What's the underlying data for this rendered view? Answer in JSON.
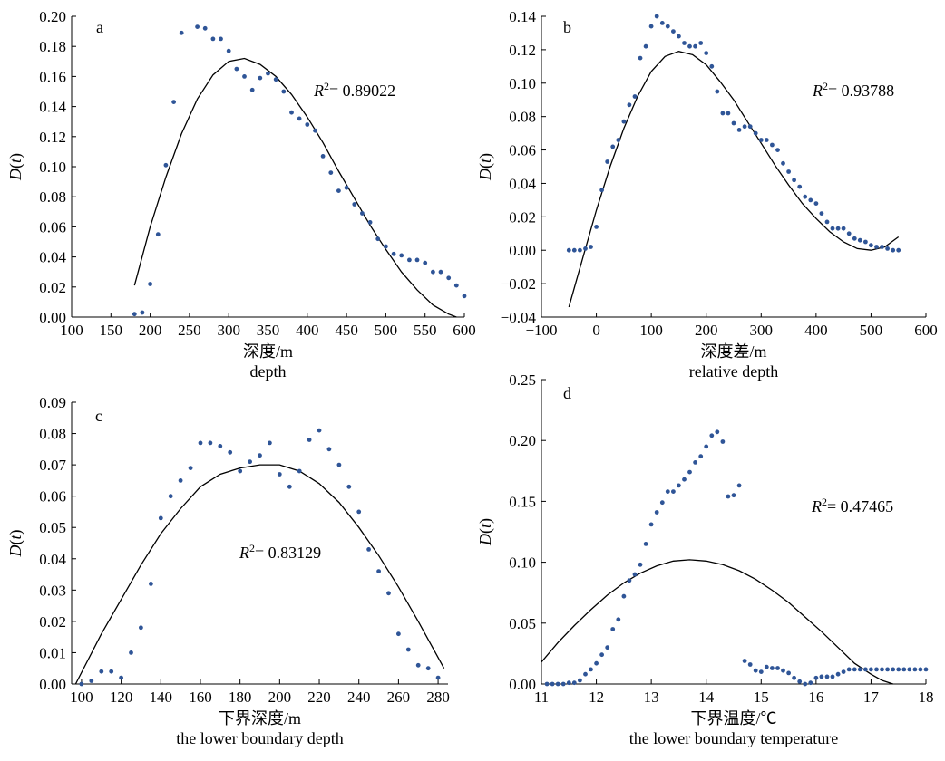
{
  "chart_data": [
    {
      "type": "scatter",
      "panel_label": "a",
      "xlabel_cn": "深度/m",
      "xlabel_en": "depth",
      "ylabel_main": "D",
      "ylabel_var": "t",
      "r2_prefix": "R",
      "r2_exp": "2",
      "r2_value": "= 0.89022",
      "xlim": [
        100,
        600
      ],
      "ylim": [
        0,
        0.2
      ],
      "xticks": [
        100,
        150,
        200,
        250,
        300,
        350,
        400,
        450,
        500,
        550,
        600
      ],
      "xtick_labels": [
        "100",
        "150",
        "200",
        "250",
        "300",
        "350",
        "400",
        "450",
        "500",
        "550",
        "600"
      ],
      "yticks": [
        0,
        0.02,
        0.04,
        0.06,
        0.08,
        0.1,
        0.12,
        0.14,
        0.16,
        0.18,
        0.2
      ],
      "ytick_labels": [
        "0.00",
        "0.02",
        "0.04",
        "0.06",
        "0.08",
        "0.10",
        "0.12",
        "0.14",
        "0.16",
        "0.18",
        "0.20"
      ],
      "points": {
        "x": [
          180,
          190,
          200,
          210,
          220,
          230,
          240,
          260,
          270,
          280,
          290,
          300,
          310,
          320,
          330,
          340,
          350,
          360,
          370,
          380,
          390,
          400,
          410,
          420,
          430,
          440,
          450,
          460,
          470,
          480,
          490,
          500,
          510,
          520,
          530,
          540,
          550,
          560,
          570,
          580,
          590,
          600
        ],
        "y": [
          0.002,
          0.003,
          0.022,
          0.055,
          0.101,
          0.143,
          0.189,
          0.193,
          0.192,
          0.185,
          0.185,
          0.177,
          0.165,
          0.16,
          0.151,
          0.159,
          0.162,
          0.158,
          0.15,
          0.136,
          0.132,
          0.128,
          0.124,
          0.107,
          0.096,
          0.084,
          0.086,
          0.075,
          0.069,
          0.063,
          0.052,
          0.047,
          0.042,
          0.041,
          0.038,
          0.038,
          0.036,
          0.03,
          0.03,
          0.026,
          0.021,
          0.014
        ]
      },
      "fit": {
        "x": [
          180,
          200,
          220,
          240,
          260,
          280,
          300,
          320,
          340,
          360,
          380,
          400,
          420,
          440,
          460,
          480,
          500,
          520,
          540,
          560,
          580,
          590
        ],
        "y": [
          0.021,
          0.06,
          0.093,
          0.122,
          0.145,
          0.161,
          0.17,
          0.172,
          0.168,
          0.16,
          0.148,
          0.133,
          0.116,
          0.097,
          0.079,
          0.061,
          0.045,
          0.03,
          0.018,
          0.008,
          0.002,
          0.0
        ]
      }
    },
    {
      "type": "scatter",
      "panel_label": "b",
      "xlabel_cn": "深度差/m",
      "xlabel_en": "relative depth",
      "ylabel_main": "D",
      "ylabel_var": "t",
      "r2_prefix": "R",
      "r2_exp": "2",
      "r2_value": "= 0.93788",
      "xlim": [
        -100,
        600
      ],
      "ylim": [
        -0.04,
        0.14
      ],
      "xticks": [
        -100,
        0,
        100,
        200,
        300,
        400,
        500,
        600
      ],
      "xtick_labels": [
        "−100",
        "0",
        "100",
        "200",
        "300",
        "400",
        "500",
        "600"
      ],
      "yticks": [
        -0.04,
        -0.02,
        0,
        0.02,
        0.04,
        0.06,
        0.08,
        0.1,
        0.12,
        0.14
      ],
      "ytick_labels": [
        "−0.04",
        "−0.02",
        "0.00",
        "0.02",
        "0.04",
        "0.06",
        "0.08",
        "0.10",
        "0.12",
        "0.14"
      ],
      "points": {
        "x": [
          -50,
          -40,
          -30,
          -20,
          -10,
          0,
          10,
          20,
          30,
          40,
          50,
          60,
          70,
          80,
          90,
          100,
          110,
          120,
          130,
          140,
          150,
          160,
          170,
          180,
          190,
          200,
          210,
          220,
          230,
          240,
          250,
          260,
          270,
          280,
          290,
          300,
          310,
          320,
          330,
          340,
          350,
          360,
          370,
          380,
          390,
          400,
          410,
          420,
          430,
          440,
          450,
          460,
          470,
          480,
          490,
          500,
          510,
          520,
          530,
          540,
          550
        ],
        "y": [
          0.0,
          0.0,
          0.0,
          0.001,
          0.002,
          0.014,
          0.036,
          0.053,
          0.062,
          0.066,
          0.077,
          0.087,
          0.092,
          0.115,
          0.122,
          0.134,
          0.14,
          0.136,
          0.134,
          0.131,
          0.128,
          0.124,
          0.122,
          0.122,
          0.124,
          0.118,
          0.11,
          0.095,
          0.082,
          0.082,
          0.076,
          0.072,
          0.074,
          0.074,
          0.07,
          0.066,
          0.066,
          0.063,
          0.06,
          0.052,
          0.047,
          0.042,
          0.038,
          0.032,
          0.03,
          0.028,
          0.022,
          0.017,
          0.013,
          0.013,
          0.013,
          0.01,
          0.007,
          0.006,
          0.005,
          0.003,
          0.002,
          0.002,
          0.001,
          0.0,
          0.0
        ]
      },
      "fit": {
        "x": [
          -50,
          -25,
          0,
          25,
          50,
          75,
          100,
          125,
          150,
          175,
          200,
          225,
          250,
          275,
          300,
          325,
          350,
          375,
          400,
          425,
          450,
          475,
          500,
          525,
          550
        ],
        "y": [
          -0.034,
          -0.005,
          0.024,
          0.05,
          0.073,
          0.092,
          0.107,
          0.116,
          0.119,
          0.117,
          0.111,
          0.101,
          0.09,
          0.077,
          0.064,
          0.051,
          0.039,
          0.028,
          0.019,
          0.011,
          0.005,
          0.001,
          0.0,
          0.002,
          0.008
        ]
      }
    },
    {
      "type": "scatter",
      "panel_label": "c",
      "xlabel_cn": "下界深度/m",
      "xlabel_en": "the lower boundary depth",
      "ylabel_main": "D",
      "ylabel_var": "t",
      "r2_prefix": "R",
      "r2_exp": "2",
      "r2_value": "= 0.83129",
      "xlim": [
        95,
        285
      ],
      "ylim": [
        0,
        0.09
      ],
      "xticks": [
        100,
        120,
        140,
        160,
        180,
        200,
        220,
        240,
        260,
        280
      ],
      "xtick_labels": [
        "100",
        "120",
        "140",
        "160",
        "180",
        "200",
        "220",
        "240",
        "260",
        "280"
      ],
      "yticks": [
        0,
        0.01,
        0.02,
        0.03,
        0.04,
        0.05,
        0.06,
        0.07,
        0.08,
        0.09
      ],
      "ytick_labels": [
        "0.00",
        "0.01",
        "0.02",
        "0.03",
        "0.04",
        "0.05",
        "0.06",
        "0.07",
        "0.08",
        "0.09"
      ],
      "points": {
        "x": [
          100,
          105,
          110,
          115,
          120,
          125,
          130,
          135,
          140,
          145,
          150,
          155,
          160,
          165,
          170,
          175,
          180,
          185,
          190,
          195,
          200,
          205,
          210,
          215,
          220,
          225,
          230,
          235,
          240,
          245,
          250,
          255,
          260,
          265,
          270,
          275,
          280
        ],
        "y": [
          0.0,
          0.001,
          0.004,
          0.004,
          0.002,
          0.01,
          0.018,
          0.032,
          0.053,
          0.06,
          0.065,
          0.069,
          0.077,
          0.077,
          0.076,
          0.074,
          0.068,
          0.071,
          0.073,
          0.077,
          0.067,
          0.063,
          0.068,
          0.078,
          0.081,
          0.075,
          0.07,
          0.063,
          0.055,
          0.043,
          0.036,
          0.029,
          0.016,
          0.011,
          0.006,
          0.005,
          0.002
        ]
      },
      "fit": {
        "x": [
          97,
          110,
          120,
          130,
          140,
          150,
          160,
          170,
          180,
          190,
          196,
          200,
          210,
          220,
          230,
          240,
          250,
          260,
          270,
          283
        ],
        "y": [
          0.0,
          0.016,
          0.027,
          0.038,
          0.048,
          0.056,
          0.063,
          0.067,
          0.069,
          0.07,
          0.07,
          0.07,
          0.068,
          0.064,
          0.058,
          0.05,
          0.041,
          0.031,
          0.02,
          0.005
        ]
      }
    },
    {
      "type": "scatter",
      "panel_label": "d",
      "xlabel_cn": "下界温度/℃",
      "xlabel_en": "the lower boundary temperature",
      "ylabel_main": "D",
      "ylabel_var": "t",
      "r2_prefix": "R",
      "r2_exp": "2",
      "r2_value": "= 0.47465",
      "xlim": [
        11,
        18
      ],
      "ylim": [
        0,
        0.25
      ],
      "xticks": [
        11,
        12,
        13,
        14,
        15,
        16,
        17,
        18
      ],
      "xtick_labels": [
        "11",
        "12",
        "13",
        "14",
        "15",
        "16",
        "17",
        "18"
      ],
      "yticks": [
        0,
        0.05,
        0.1,
        0.15,
        0.2,
        0.25
      ],
      "ytick_labels": [
        "0.00",
        "0.05",
        "0.10",
        "0.15",
        "0.20",
        "0.25"
      ],
      "points": {
        "x": [
          11.1,
          11.2,
          11.3,
          11.4,
          11.5,
          11.6,
          11.7,
          11.8,
          11.9,
          12.0,
          12.1,
          12.2,
          12.3,
          12.4,
          12.5,
          12.6,
          12.7,
          12.8,
          12.9,
          13.0,
          13.1,
          13.2,
          13.3,
          13.4,
          13.5,
          13.6,
          13.7,
          13.8,
          13.9,
          14.0,
          14.1,
          14.2,
          14.3,
          14.4,
          14.5,
          14.6,
          14.7,
          14.8,
          14.9,
          15.0,
          15.1,
          15.2,
          15.3,
          15.4,
          15.5,
          15.6,
          15.7,
          15.8,
          15.9,
          16.0,
          16.1,
          16.2,
          16.3,
          16.4,
          16.5,
          16.6,
          16.7,
          16.8,
          16.9,
          17.0,
          17.1,
          17.2,
          17.3,
          17.4,
          17.5,
          17.6,
          17.7,
          17.8,
          17.9,
          18.0
        ],
        "y": [
          0.0,
          0.0,
          0.0,
          0.0,
          0.001,
          0.001,
          0.003,
          0.008,
          0.012,
          0.017,
          0.024,
          0.03,
          0.045,
          0.053,
          0.072,
          0.085,
          0.09,
          0.098,
          0.115,
          0.131,
          0.141,
          0.149,
          0.158,
          0.158,
          0.163,
          0.168,
          0.174,
          0.182,
          0.187,
          0.195,
          0.204,
          0.207,
          0.199,
          0.154,
          0.155,
          0.163,
          0.019,
          0.016,
          0.011,
          0.01,
          0.014,
          0.013,
          0.013,
          0.011,
          0.009,
          0.005,
          0.002,
          0.0,
          0.001,
          0.005,
          0.006,
          0.006,
          0.006,
          0.008,
          0.01,
          0.012,
          0.012,
          0.012,
          0.012,
          0.012,
          0.012,
          0.012,
          0.012,
          0.012,
          0.012,
          0.012,
          0.012,
          0.012,
          0.012,
          0.012
        ]
      },
      "fit": {
        "x": [
          11.0,
          11.3,
          11.6,
          11.9,
          12.2,
          12.5,
          12.8,
          13.1,
          13.4,
          13.7,
          14.0,
          14.3,
          14.6,
          14.9,
          15.2,
          15.5,
          15.8,
          16.1,
          16.4,
          16.7,
          17.0,
          17.2,
          17.4
        ],
        "y": [
          0.018,
          0.034,
          0.048,
          0.061,
          0.073,
          0.083,
          0.091,
          0.097,
          0.101,
          0.102,
          0.101,
          0.098,
          0.093,
          0.086,
          0.077,
          0.067,
          0.055,
          0.043,
          0.03,
          0.017,
          0.008,
          0.003,
          0.0
        ]
      }
    }
  ]
}
